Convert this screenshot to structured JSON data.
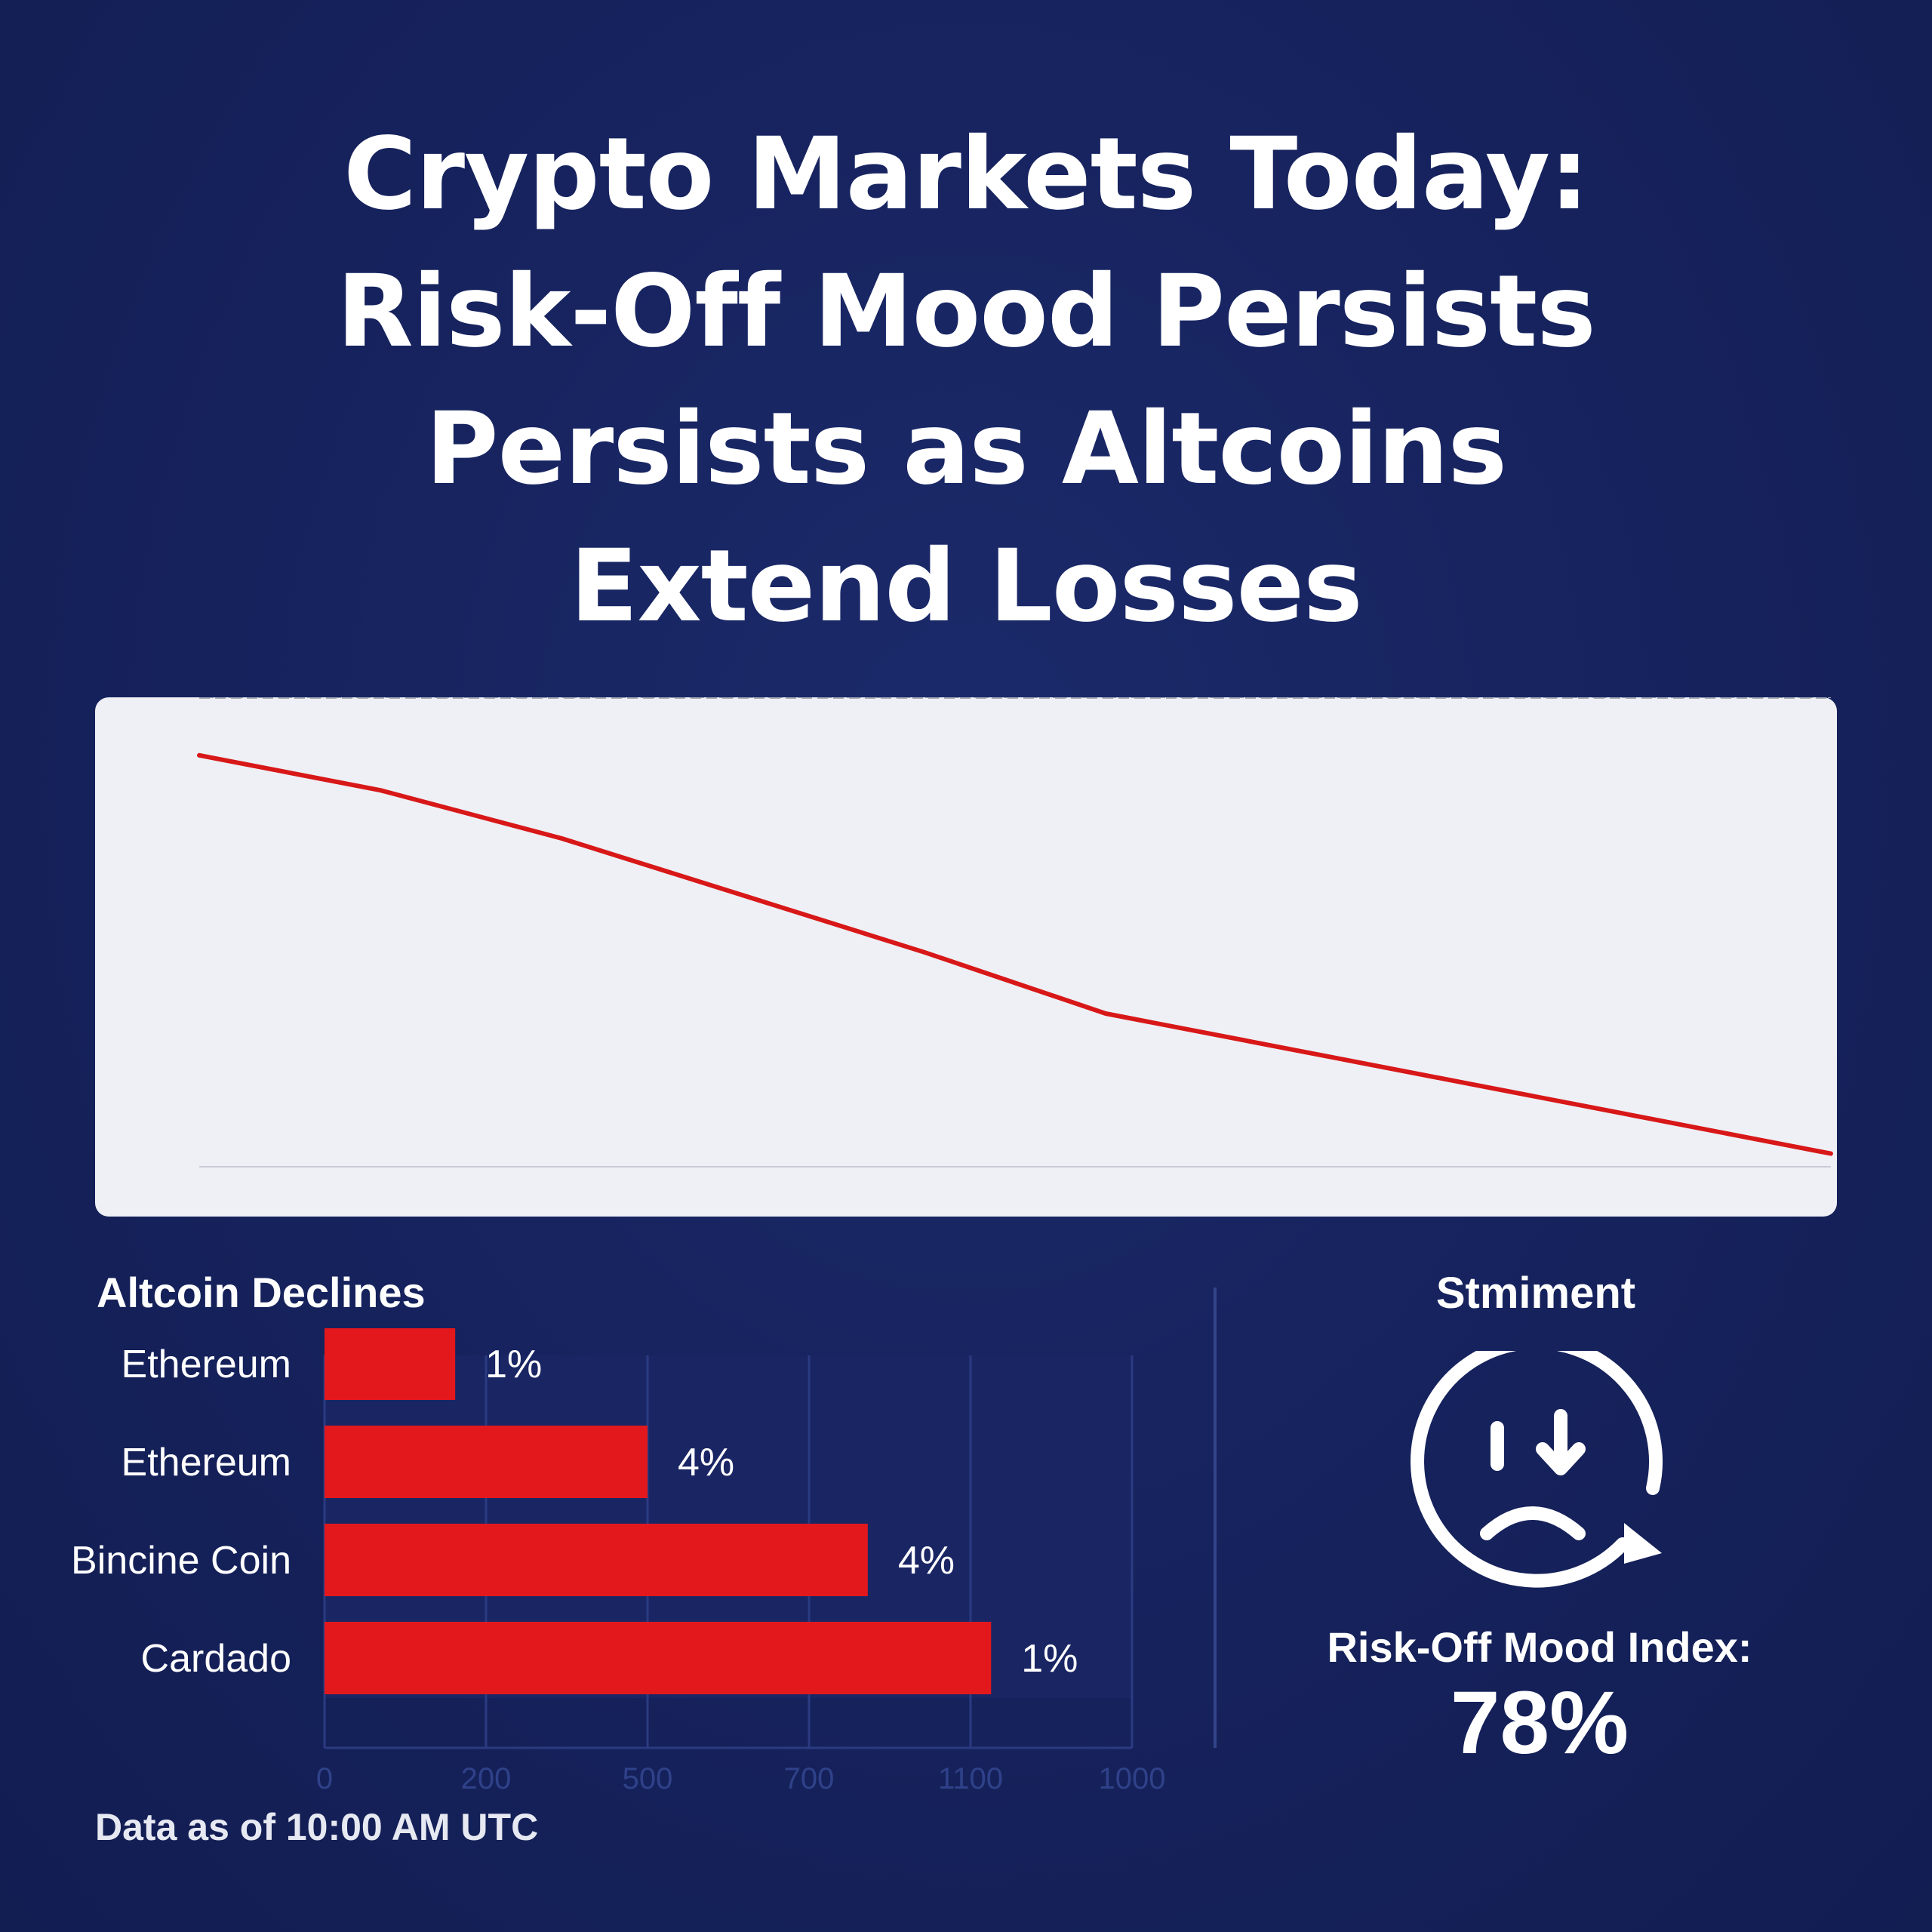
{
  "headline": {
    "line1": "Crypto Markets Today:",
    "line2": "Risk-Off Mood Persists",
    "line3": "Persists as Altcoins",
    "line4": "Extend Losses"
  },
  "colors": {
    "background": "#16235e",
    "panel": "#eef0f5",
    "line": "#d81818",
    "bar": "#e3181d",
    "grid": "#a7abb6"
  },
  "chart_data": [
    {
      "type": "line",
      "title": "",
      "xlabel": "",
      "ylabel": "",
      "grid": true,
      "series": [
        {
          "values": [
            94,
            86,
            75,
            62,
            49,
            35,
            27,
            19,
            11,
            3
          ]
        }
      ],
      "x": [
        0,
        1,
        2,
        3,
        4,
        5,
        6,
        7,
        8,
        9
      ],
      "ylim": [
        0,
        100
      ]
    },
    {
      "type": "bar",
      "title": "Altcoin Declines",
      "orientation": "horizontal",
      "categories": [
        "Ethereum",
        "Ethereum",
        "Bincine Coin",
        "Cardado"
      ],
      "values": [
        89,
        220,
        370,
        454
      ],
      "value_labels": [
        "1%",
        "4%",
        "4%",
        "1%"
      ],
      "xticks": [
        "0",
        "200",
        "500",
        "700",
        "1100",
        "1000"
      ],
      "xlim": [
        0,
        550
      ],
      "grid": true
    }
  ],
  "sentiment": {
    "title": "Stmiment",
    "icon": "sad-face-down-arrow-icon",
    "label": "Risk-Off Mood Index:",
    "value": "78%",
    "level": 0.78
  },
  "footnote": "Data as of 10:00 AM UTC"
}
